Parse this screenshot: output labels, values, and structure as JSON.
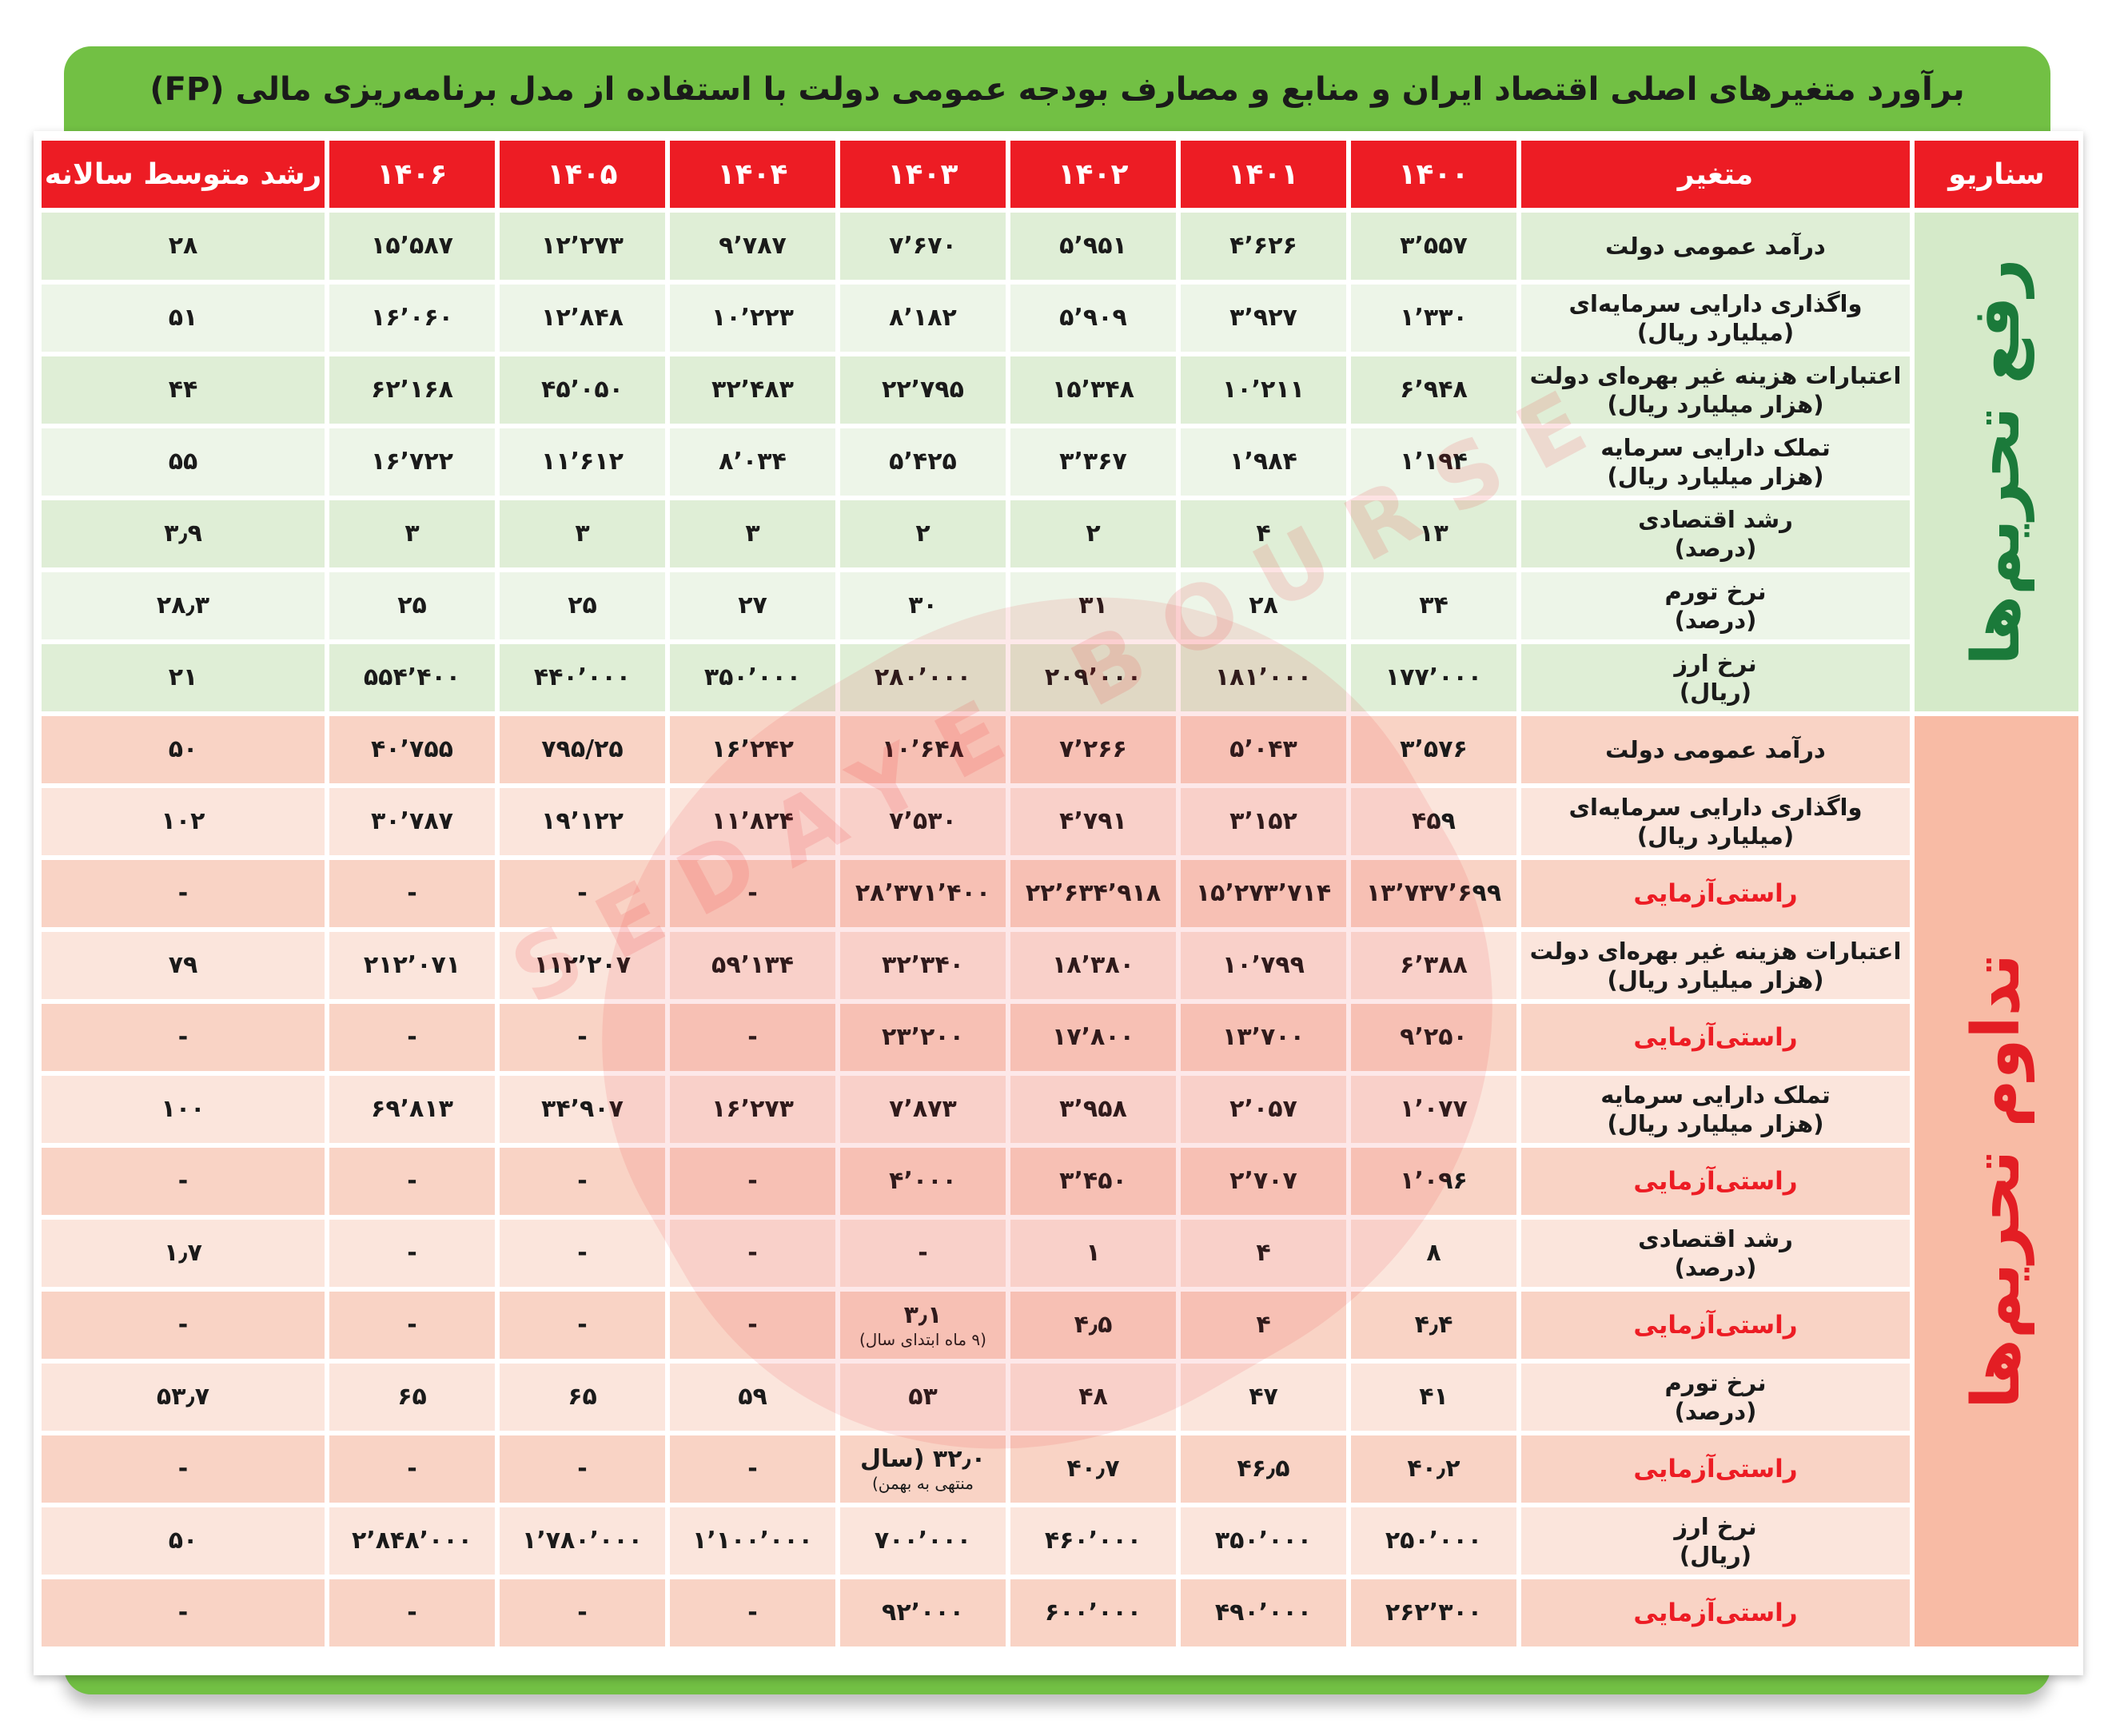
{
  "title": "برآورد متغیرهای اصلی اقتصاد ایران و منابع و مصارف بودجه عمومی دولت با استفاده از مدل برنامه‌ریزی مالی (FP)",
  "watermark": "SEDAYE BOURSE",
  "colors": {
    "header": "#ed1c24",
    "banner": "#72c044",
    "scenario_green": "#1b7a3a",
    "scenario_red": "#e31e24",
    "verify": "#ed1c24"
  },
  "headers": [
    "سناریو",
    "متغیر",
    "۱۴۰۰",
    "۱۴۰۱",
    "۱۴۰۲",
    "۱۴۰۳",
    "۱۴۰۴",
    "۱۴۰۵",
    "۱۴۰۶",
    "رشد متوسط سالانه"
  ],
  "scenarios": [
    {
      "label": "رفع تحریم‌ها",
      "color": "green",
      "rows": [
        {
          "variable": [
            "درآمد عمومی دولت"
          ],
          "values": [
            "۳٬۵۵۷",
            "۴٬۶۲۶",
            "۵٬۹۵۱",
            "۷٬۶۷۰",
            "۹٬۷۸۷",
            "۱۲٬۲۷۳",
            "۱۵٬۵۸۷",
            "۲۸"
          ]
        },
        {
          "variable": [
            "واگذاری دارایی سرمایه‌ای",
            "(میلیارد ریال)"
          ],
          "values": [
            "۱٬۳۳۰",
            "۳٬۹۲۷",
            "۵٬۹۰۹",
            "۸٬۱۸۲",
            "۱۰٬۲۲۳",
            "۱۲٬۸۴۸",
            "۱۶٬۰۶۰",
            "۵۱"
          ]
        },
        {
          "variable": [
            "اعتبارات هزینه غیر بهره‌ای دولت",
            "(هزار میلیارد ریال)"
          ],
          "values": [
            "۶٬۹۴۸",
            "۱۰٬۲۱۱",
            "۱۵٬۳۴۸",
            "۲۲٬۷۹۵",
            "۳۲٬۴۸۳",
            "۴۵٬۰۵۰",
            "۶۲٬۱۶۸",
            "۴۴"
          ]
        },
        {
          "variable": [
            "تملک دارایی سرمایه",
            "(هزار میلیارد ریال)"
          ],
          "values": [
            "۱٬۱۹۴",
            "۱٬۹۸۴",
            "۳٬۳۶۷",
            "۵٬۴۲۵",
            "۸٬۰۳۴",
            "۱۱٬۶۱۲",
            "۱۶٬۷۲۲",
            "۵۵"
          ]
        },
        {
          "variable": [
            "رشد اقتصادی",
            "(درصد)"
          ],
          "values": [
            "۱۳",
            "۴",
            "۲",
            "۲",
            "۳",
            "۳",
            "۳",
            "۳٫۹"
          ]
        },
        {
          "variable": [
            "نرخ تورم",
            "(درصد)"
          ],
          "values": [
            "۳۴",
            "۲۸",
            "۳۱",
            "۳۰",
            "۲۷",
            "۲۵",
            "۲۵",
            "۲۸٫۳"
          ]
        },
        {
          "variable": [
            "نرخ ارز",
            "(ریال)"
          ],
          "values": [
            "۱۷۷٬۰۰۰",
            "۱۸۱٬۰۰۰",
            "۲۰۹٬۰۰۰",
            "۲۸۰٬۰۰۰",
            "۳۵۰٬۰۰۰",
            "۴۴۰٬۰۰۰",
            "۵۵۴٬۴۰۰",
            "۲۱"
          ]
        }
      ]
    },
    {
      "label": "تداوم تحریم‌ها",
      "color": "red",
      "rows": [
        {
          "variable": [
            "درآمد عمومی دولت"
          ],
          "values": [
            "۳٬۵۷۶",
            "۵٬۰۴۳",
            "۷٬۲۶۶",
            "۱۰٬۶۴۸",
            "۱۶٬۲۴۲",
            "۷۹۵/۲۵",
            "۴۰٬۷۵۵",
            "۵۰"
          ]
        },
        {
          "variable": [
            "واگذاری دارایی سرمایه‌ای",
            "(میلیارد ریال)"
          ],
          "values": [
            "۴۵۹",
            "۳٬۱۵۲",
            "۴٬۷۹۱",
            "۷٬۵۳۰",
            "۱۱٬۸۲۴",
            "۱۹٬۱۲۲",
            "۳۰٬۷۸۷",
            "۱۰۲"
          ]
        },
        {
          "variable": [
            "راستی‌آزمایی"
          ],
          "verify": true,
          "values": [
            "۱۳٬۷۳۷٬۶۹۹",
            "۱۵٬۲۷۳٬۷۱۴",
            "۲۲٬۶۳۴٬۹۱۸",
            "۲۸٬۳۷۱٬۴۰۰",
            "-",
            "-",
            "-",
            "-"
          ]
        },
        {
          "variable": [
            "اعتبارات هزینه غیر بهره‌ای دولت",
            "(هزار میلیارد ریال)"
          ],
          "values": [
            "۶٬۳۸۸",
            "۱۰٬۷۹۹",
            "۱۸٬۳۸۰",
            "۳۲٬۳۴۰",
            "۵۹٬۱۳۴",
            "۱۱۲٬۲۰۷",
            "۲۱۲٬۰۷۱",
            "۷۹"
          ]
        },
        {
          "variable": [
            "راستی‌آزمایی"
          ],
          "verify": true,
          "values": [
            "۹٬۲۵۰",
            "۱۳٬۷۰۰",
            "۱۷٬۸۰۰",
            "۲۳٬۲۰۰",
            "-",
            "-",
            "-",
            "-"
          ]
        },
        {
          "variable": [
            "تملک دارایی سرمایه",
            "(هزار میلیارد ریال)"
          ],
          "values": [
            "۱٬۰۷۷",
            "۲٬۰۵۷",
            "۳٬۹۵۸",
            "۷٬۸۷۳",
            "۱۶٬۲۷۳",
            "۳۴٬۹۰۷",
            "۶۹٬۸۱۳",
            "۱۰۰"
          ]
        },
        {
          "variable": [
            "راستی‌آزمایی"
          ],
          "verify": true,
          "values": [
            "۱٬۰۹۶",
            "۲٬۷۰۷",
            "۳٬۴۵۰",
            "۴٬۰۰۰",
            "-",
            "-",
            "-",
            "-"
          ]
        },
        {
          "variable": [
            "رشد اقتصادی",
            "(درصد)"
          ],
          "values": [
            "۸",
            "۴",
            "۱",
            "-",
            "-",
            "-",
            "-",
            "۱٫۷"
          ]
        },
        {
          "variable": [
            "راستی‌آزمایی"
          ],
          "verify": true,
          "values": [
            "۴٫۴",
            "۴",
            "۴٫۵",
            {
              "value": "۳٫۱",
              "note": "(۹ ماه ابتدای سال)"
            },
            "-",
            "-",
            "-",
            "-"
          ]
        },
        {
          "variable": [
            "نرخ تورم",
            "(درصد)"
          ],
          "values": [
            "۴۱",
            "۴۷",
            "۴۸",
            "۵۳",
            "۵۹",
            "۶۵",
            "۶۵",
            "۵۳٫۷"
          ]
        },
        {
          "variable": [
            "راستی‌آزمایی"
          ],
          "verify": true,
          "values": [
            "۴۰٫۲",
            "۴۶٫۵",
            "۴۰٫۷",
            {
              "value": "۳۲٫۰ (سال",
              "note": "منتهی به بهمن)"
            },
            "-",
            "-",
            "-",
            "-"
          ]
        },
        {
          "variable": [
            "نرخ ارز",
            "(ریال)"
          ],
          "values": [
            "۲۵۰٬۰۰۰",
            "۳۵۰٬۰۰۰",
            "۴۶۰٬۰۰۰",
            "۷۰۰٬۰۰۰",
            "۱٬۱۰۰٬۰۰۰",
            "۱٬۷۸۰٬۰۰۰",
            "۲٬۸۴۸٬۰۰۰",
            "۵۰"
          ]
        },
        {
          "variable": [
            "راستی‌آزمایی"
          ],
          "verify": true,
          "values": [
            "۲۶۲٬۳۰۰",
            "۴۹۰٬۰۰۰",
            "۶۰۰٬۰۰۰",
            "۹۲٬۰۰۰",
            "-",
            "-",
            "-",
            "-"
          ]
        }
      ]
    }
  ]
}
